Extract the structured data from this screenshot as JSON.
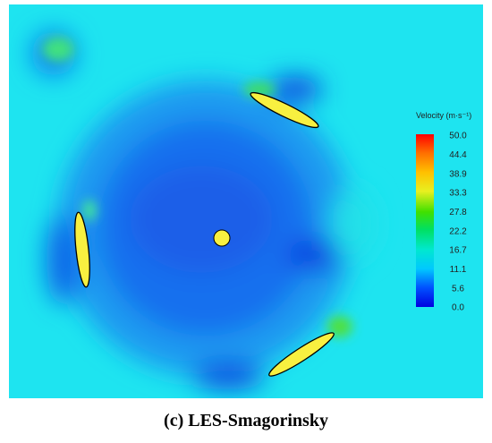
{
  "figure": {
    "caption": "(c) LES-Smagorinsky",
    "colorbar": {
      "title": "Velocity (m·s⁻¹)",
      "labels": [
        "50.0",
        "44.4",
        "38.9",
        "33.3",
        "27.8",
        "22.2",
        "16.7",
        "11.1",
        "5.6",
        "0.0"
      ]
    }
  }
}
